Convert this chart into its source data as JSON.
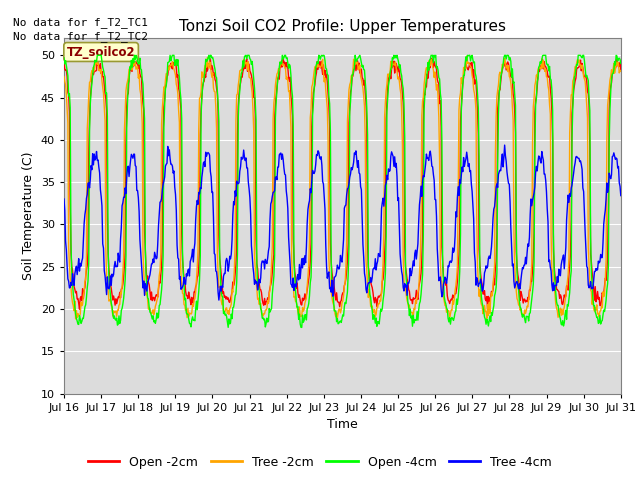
{
  "title": "Tonzi Soil CO2 Profile: Upper Temperatures",
  "xlabel": "Time",
  "ylabel": "Soil Temperature (C)",
  "ylim": [
    10,
    52
  ],
  "yticks": [
    10,
    15,
    20,
    25,
    30,
    35,
    40,
    45,
    50
  ],
  "bg_color": "#dcdcdc",
  "legend_labels": [
    "Open -2cm",
    "Tree -2cm",
    "Open -4cm",
    "Tree -4cm"
  ],
  "legend_colors": [
    "red",
    "orange",
    "lime",
    "blue"
  ],
  "no_data_text1": "No data for f_T2_TC1",
  "no_data_text2": "No data for f_T2_TC2",
  "legend_label": "TZ_soilco2"
}
